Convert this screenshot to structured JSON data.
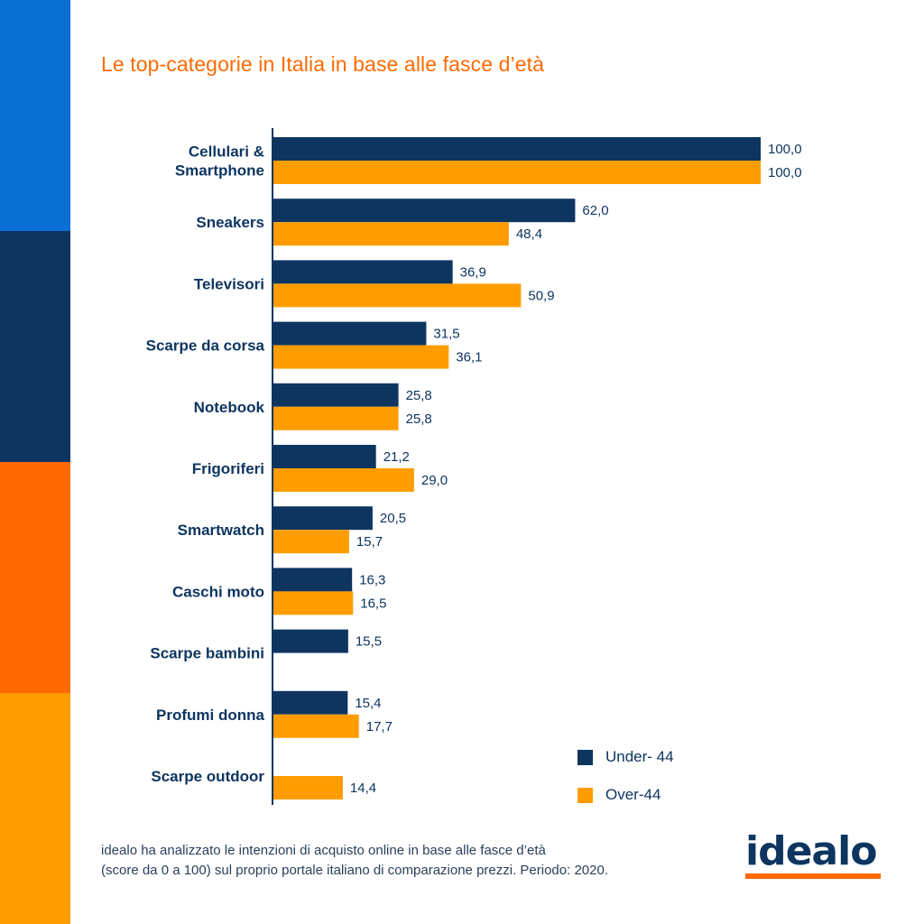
{
  "title": "Le top-categorie in Italia in base alle fasce d’età",
  "colors": {
    "under44": "#0d3560",
    "over44": "#ff9d00",
    "title": "#ff6a00",
    "stripes": [
      "#0a6fd4",
      "#0d3560",
      "#ff6a00",
      "#ff9d00"
    ]
  },
  "chart_data": {
    "type": "bar",
    "orientation": "horizontal",
    "categories": [
      [
        "Cellulari &",
        "Smartphone"
      ],
      [
        "Sneakers"
      ],
      [
        "Televisori"
      ],
      [
        "Scarpe da corsa"
      ],
      [
        "Notebook"
      ],
      [
        "Frigoriferi"
      ],
      [
        "Smartwatch"
      ],
      [
        "Caschi moto"
      ],
      [
        "Scarpe bambini"
      ],
      [
        "Profumi donna"
      ],
      [
        "Scarpe outdoor"
      ]
    ],
    "series": [
      {
        "name": "Under- 44",
        "values": [
          100.0,
          62.0,
          36.9,
          31.5,
          25.8,
          21.2,
          20.5,
          16.3,
          15.5,
          15.4,
          null
        ],
        "labels": [
          "100,0",
          "62,0",
          "36,9",
          "31,5",
          "25,8",
          "21,2",
          "20,5",
          "16,3",
          "15,5",
          "15,4",
          ""
        ]
      },
      {
        "name": "Over-44",
        "values": [
          100.0,
          48.4,
          50.9,
          36.1,
          25.8,
          29.0,
          15.7,
          16.5,
          null,
          17.7,
          14.4
        ],
        "labels": [
          "100,0",
          "48,4",
          "50,9",
          "36,1",
          "25,8",
          "29,0",
          "15,7",
          "16,5",
          "",
          "17,7",
          "14,4"
        ]
      }
    ],
    "xlim": [
      0,
      100
    ],
    "grid": false,
    "legend_position": "bottom-right"
  },
  "legend": {
    "under44": "Under- 44",
    "over44": "Over-44"
  },
  "footnote": {
    "line1": "idealo ha analizzato le intenzioni di acquisto online in base alle fasce d’età",
    "line2": "(score da 0 a 100) sul proprio portale italiano di comparazione prezzi. Periodo: 2020."
  },
  "logo": {
    "text": "idealo"
  }
}
